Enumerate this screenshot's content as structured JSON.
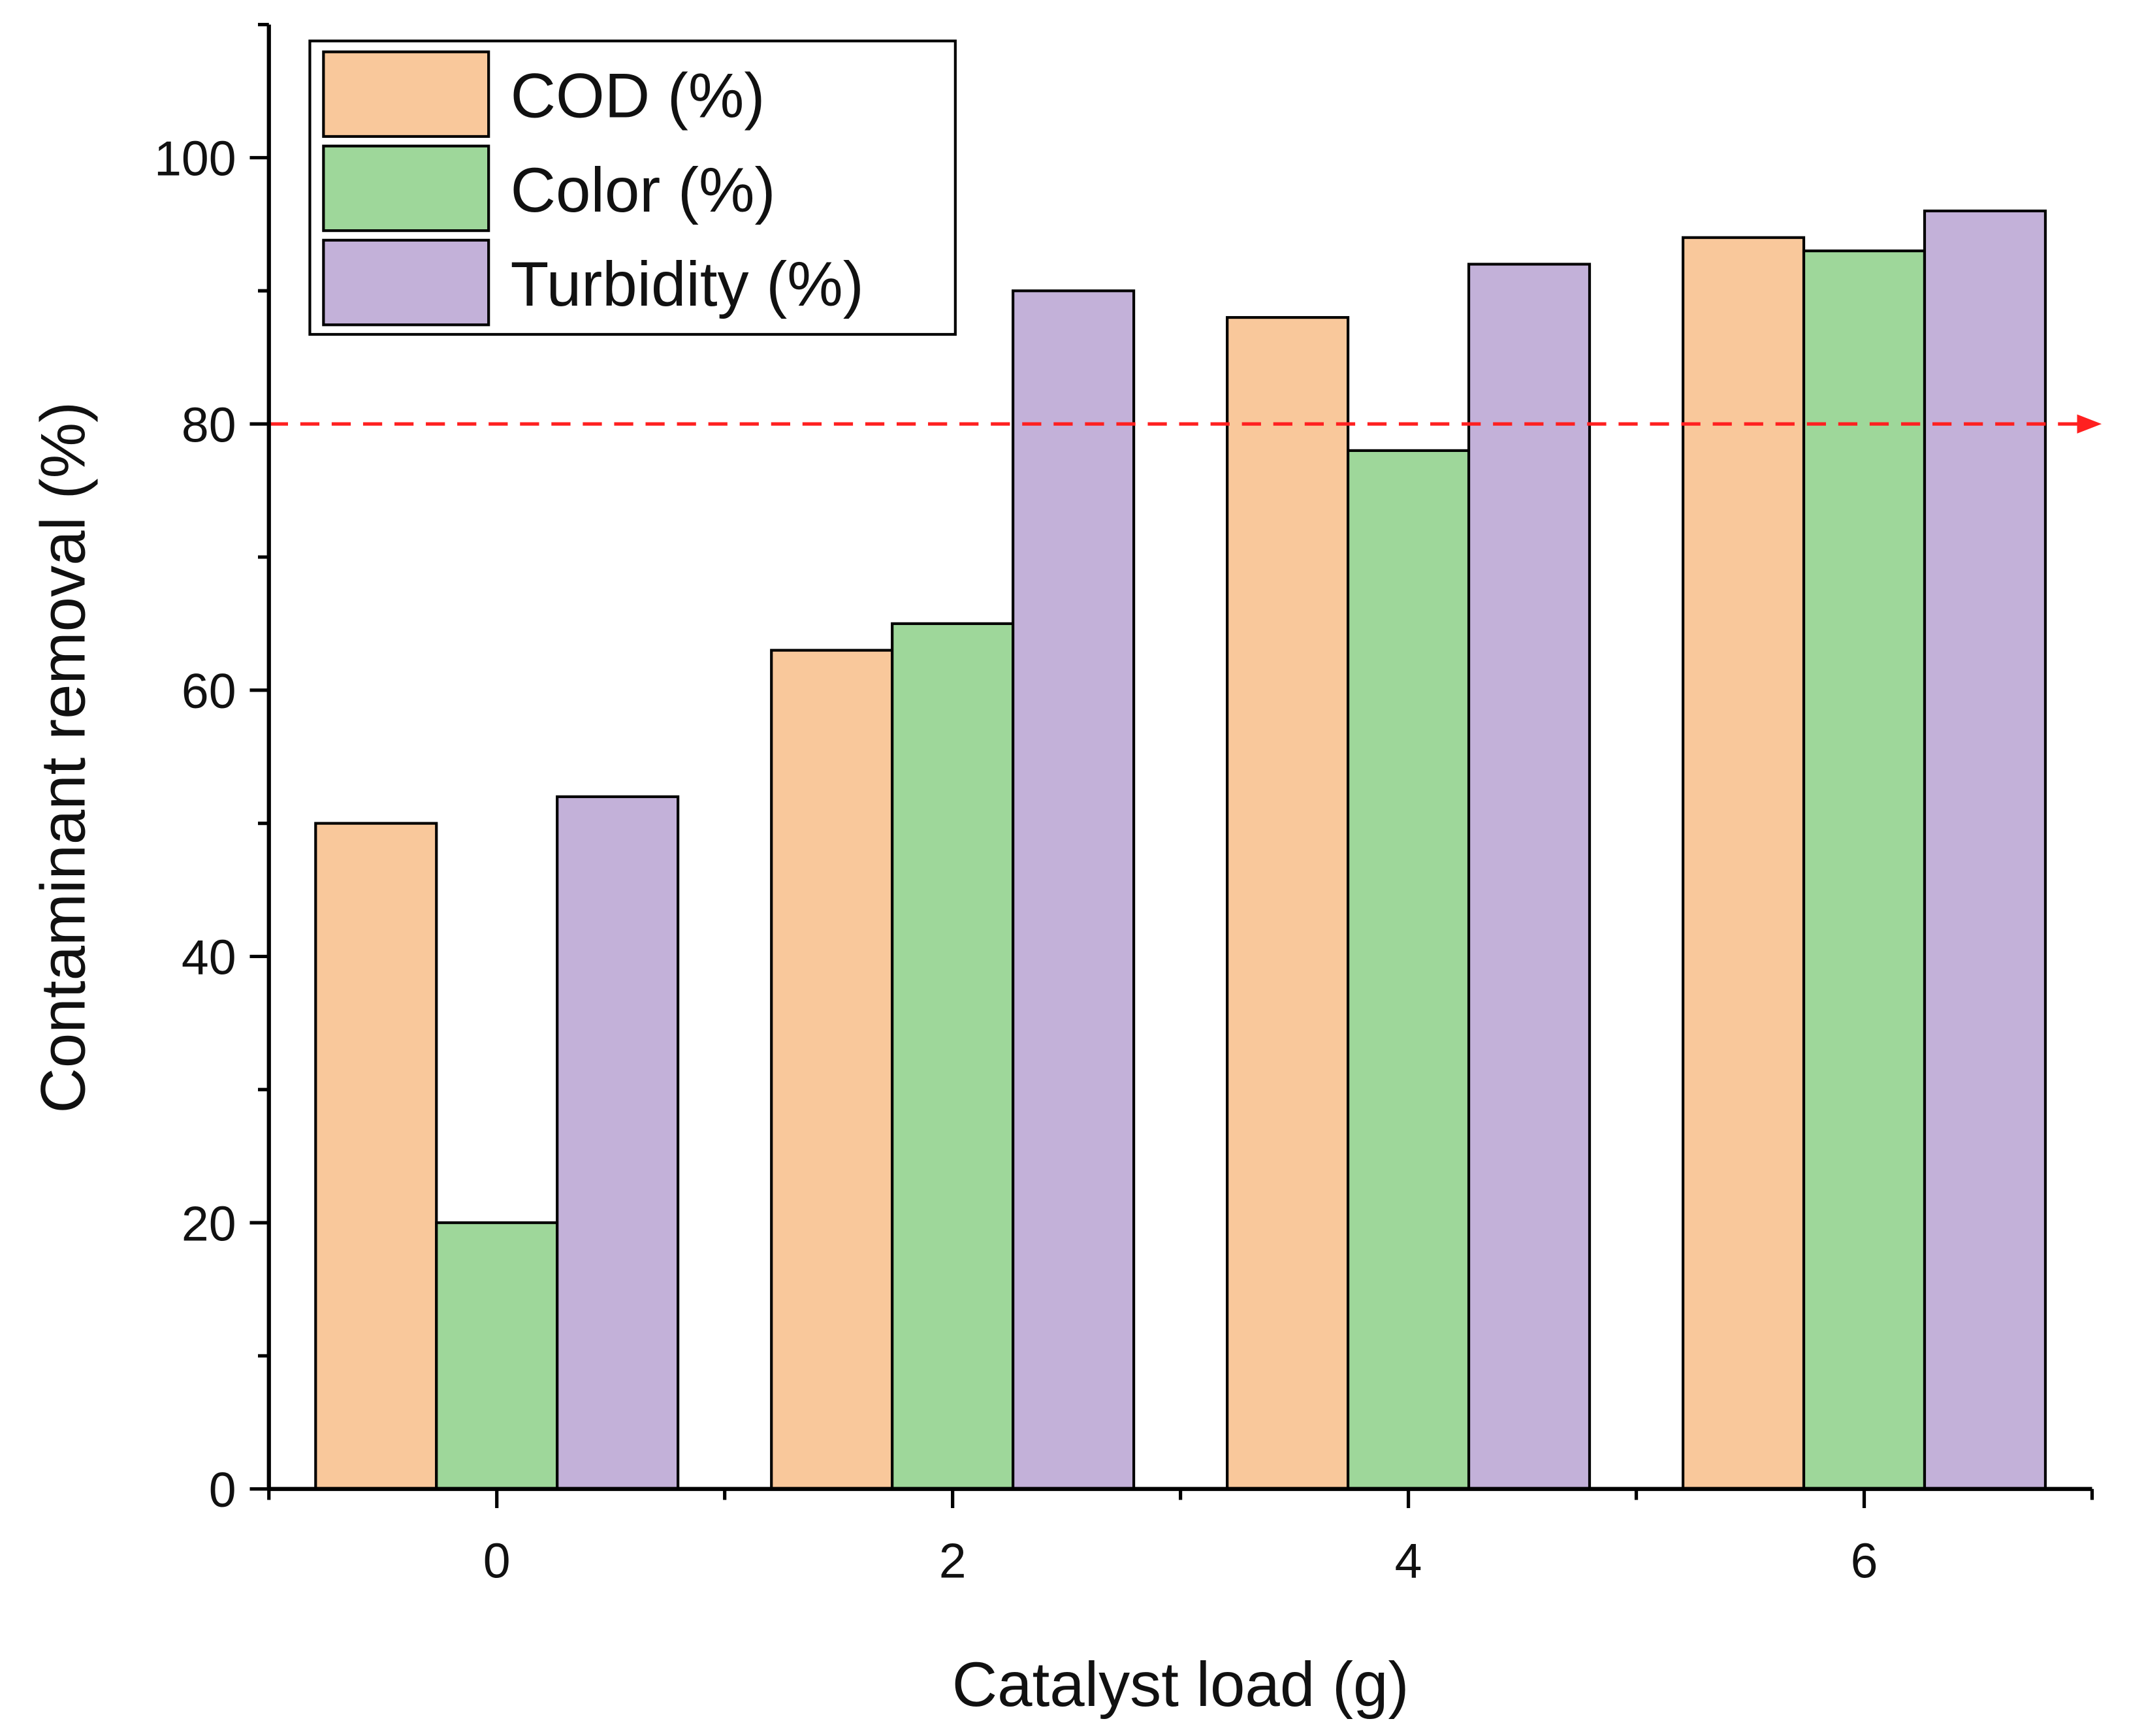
{
  "chart_data": {
    "type": "bar",
    "title": "",
    "xlabel": "Catalyst load (g)",
    "ylabel": "Contaminant removal (%)",
    "categories": [
      "0",
      "2",
      "4",
      "6"
    ],
    "x": [
      0,
      2,
      4,
      6
    ],
    "xlim": [
      -1,
      7
    ],
    "ylim": [
      0,
      110
    ],
    "xticks": [
      "0",
      "2",
      "4",
      "6"
    ],
    "yticks": [
      "0",
      "20",
      "40",
      "60",
      "80",
      "100"
    ],
    "ytick_values": [
      0,
      20,
      40,
      60,
      80,
      100
    ],
    "grid": false,
    "legend_position": "top-left",
    "series": [
      {
        "name": "COD (%)",
        "color": "#F9C89B",
        "values": [
          50,
          63,
          88,
          94
        ]
      },
      {
        "name": "Color (%)",
        "color": "#9ED79A",
        "values": [
          20,
          65,
          78,
          93
        ]
      },
      {
        "name": "Turbidity (%)",
        "color": "#C3B1D9",
        "values": [
          52,
          90,
          92,
          96
        ]
      }
    ],
    "reference_line": {
      "y": 80,
      "color": "#FF2020",
      "style": "dashed-arrow"
    }
  }
}
